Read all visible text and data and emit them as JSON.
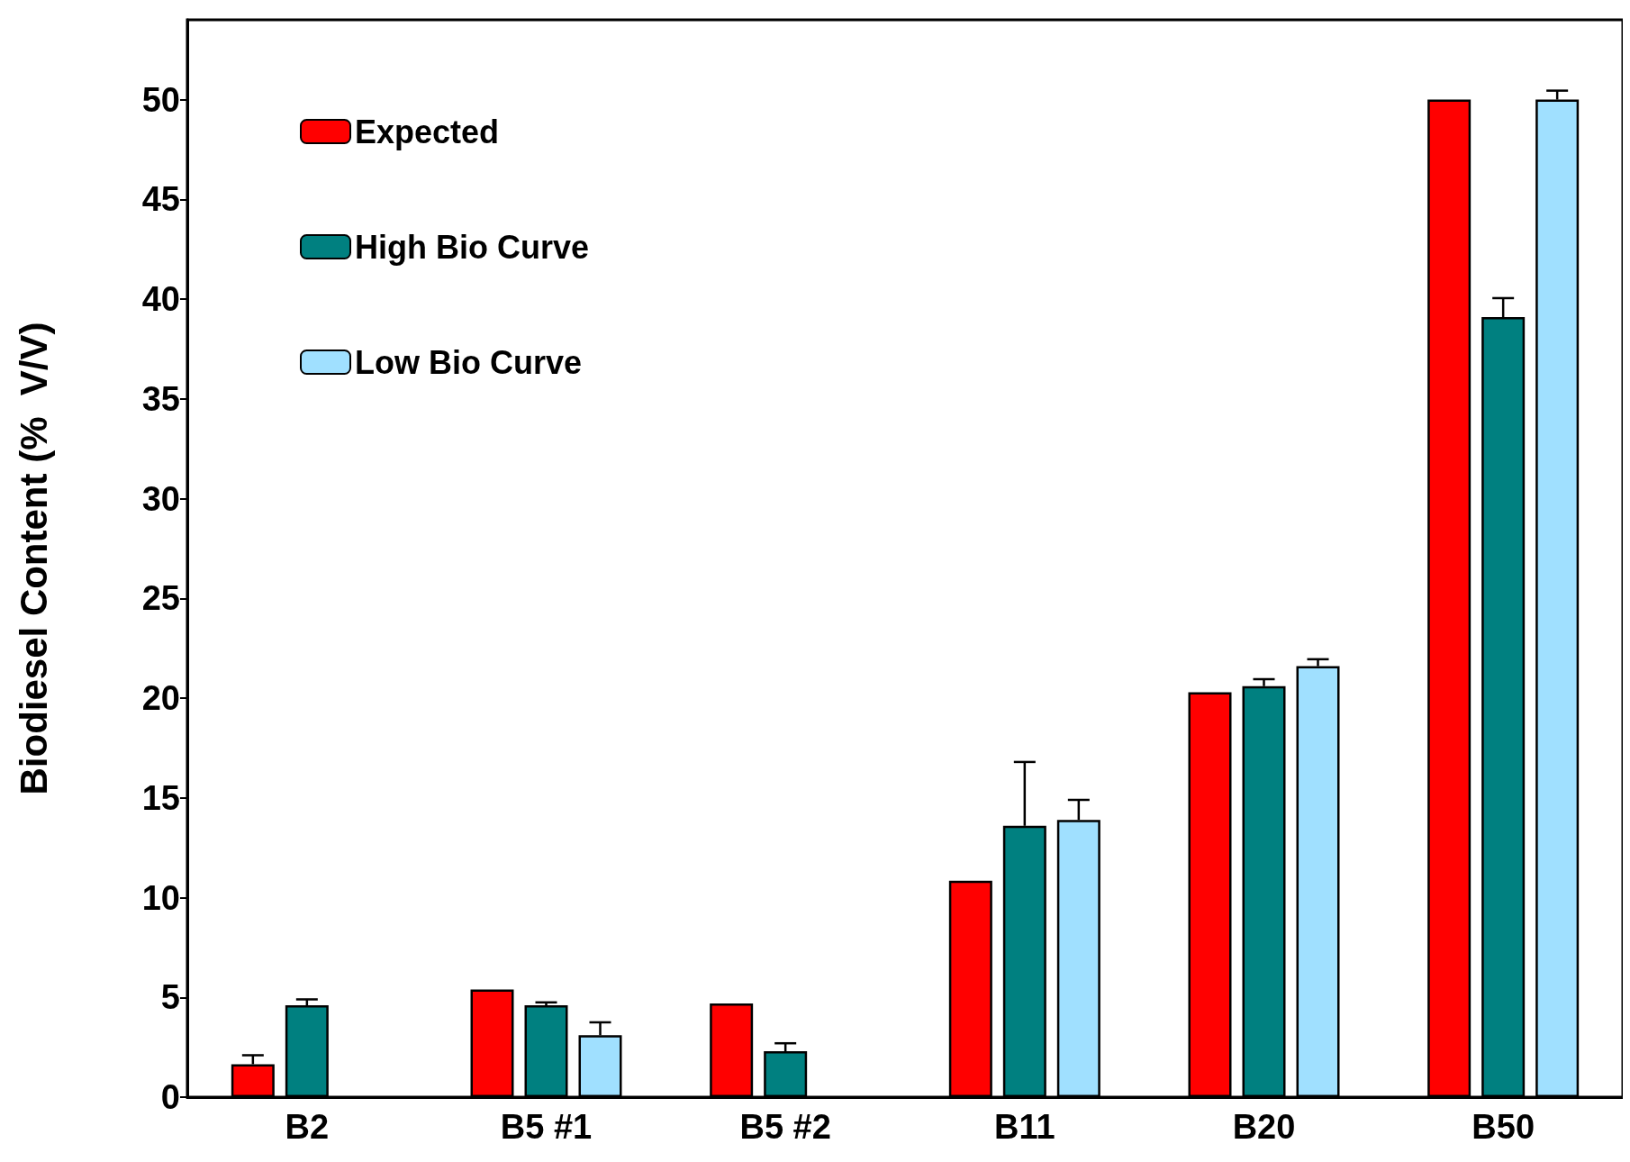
{
  "chart_data": {
    "type": "bar",
    "ylabel": "Biodiesel Content (%  V/V)",
    "categories": [
      "B2",
      "B5 #1",
      "B5 #2",
      "B11",
      "B20",
      "B50"
    ],
    "series": [
      {
        "name": "Expected",
        "color": "#ff0000",
        "values": [
          1.65,
          5.4,
          4.7,
          10.85,
          20.3,
          50
        ],
        "errors": [
          [
            1.65,
            2.1
          ],
          null,
          null,
          null,
          null,
          null
        ]
      },
      {
        "name": "High Bio Curve",
        "color": "#008080",
        "values": [
          4.6,
          4.6,
          2.3,
          13.6,
          20.6,
          39.1
        ],
        "errors": [
          [
            4.6,
            4.9
          ],
          [
            4.6,
            4.75
          ],
          [
            2.3,
            2.7
          ],
          [
            13.6,
            16.8
          ],
          [
            20.6,
            20.95
          ],
          [
            39.1,
            40.05
          ]
        ]
      },
      {
        "name": "Low Bio Curve",
        "color": "#a0e0ff",
        "values": [
          null,
          3.1,
          null,
          13.9,
          21.6,
          50
        ],
        "errors": [
          null,
          [
            3.1,
            3.75
          ],
          null,
          [
            13.9,
            14.9
          ],
          [
            21.6,
            21.95
          ],
          [
            50,
            50.45
          ]
        ]
      }
    ],
    "ylim": [
      0,
      54
    ],
    "yticks": [
      0,
      5,
      10,
      15,
      20,
      25,
      30,
      35,
      40,
      45,
      50
    ],
    "grid": false,
    "legend": "top left"
  }
}
